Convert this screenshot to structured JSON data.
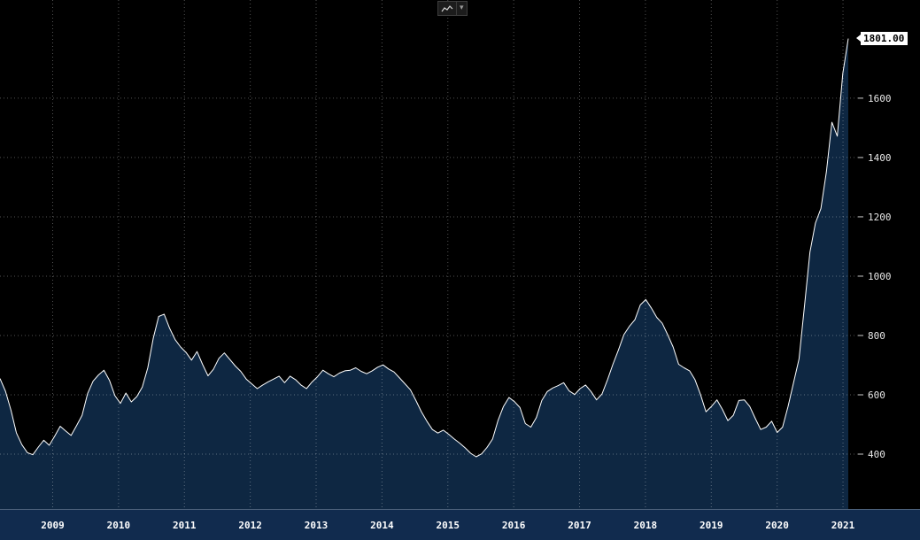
{
  "window": {
    "background": "#000000"
  },
  "toolbar": {
    "caret": "▾"
  },
  "chart_data": {
    "type": "area",
    "title": "",
    "xlabel": "",
    "ylabel": "",
    "grid": "dotted",
    "legend_position": "none",
    "last_price": "1801.00",
    "xlim": [
      2008.7,
      2021.58
    ],
    "ylim_visible": [
      215,
      1931
    ],
    "y_ticks": [
      400,
      600,
      800,
      1000,
      1200,
      1400,
      1600
    ],
    "x_ticks": [
      {
        "label": "2009",
        "t": 2009.5
      },
      {
        "label": "2010",
        "t": 2010.5
      },
      {
        "label": "2011",
        "t": 2011.5
      },
      {
        "label": "2012",
        "t": 2012.5
      },
      {
        "label": "2013",
        "t": 2013.5
      },
      {
        "label": "2014",
        "t": 2014.5
      },
      {
        "label": "2015",
        "t": 2015.5
      },
      {
        "label": "2016",
        "t": 2016.5
      },
      {
        "label": "2017",
        "t": 2017.5
      },
      {
        "label": "2018",
        "t": 2018.5
      },
      {
        "label": "2019",
        "t": 2019.5
      },
      {
        "label": "2020",
        "t": 2020.5
      },
      {
        "label": "2021",
        "t": 2021.5
      }
    ],
    "values": [
      655,
      612,
      548,
      472,
      432,
      405,
      398,
      424,
      447,
      430,
      461,
      494,
      478,
      463,
      496,
      531,
      604,
      646,
      667,
      683,
      649,
      597,
      571,
      606,
      576,
      594,
      626,
      691,
      791,
      864,
      872,
      824,
      786,
      761,
      743,
      717,
      746,
      703,
      664,
      686,
      723,
      741,
      719,
      697,
      679,
      653,
      637,
      621,
      633,
      644,
      653,
      663,
      641,
      663,
      651,
      633,
      621,
      643,
      661,
      683,
      671,
      661,
      673,
      681,
      683,
      691,
      679,
      671,
      681,
      693,
      701,
      687,
      677,
      657,
      637,
      617,
      581,
      543,
      511,
      483,
      471,
      481,
      467,
      451,
      437,
      421,
      403,
      391,
      401,
      423,
      451,
      513,
      561,
      591,
      577,
      557,
      503,
      491,
      523,
      581,
      611,
      623,
      631,
      641,
      613,
      601,
      621,
      633,
      611,
      583,
      603,
      651,
      703,
      751,
      803,
      831,
      853,
      903,
      921,
      893,
      861,
      841,
      803,
      761,
      703,
      691,
      681,
      651,
      601,
      543,
      561,
      583,
      551,
      513,
      531,
      581,
      583,
      561,
      521,
      483,
      491,
      511,
      473,
      491,
      561,
      641,
      721,
      901,
      1081,
      1179,
      1228,
      1352,
      1519,
      1472,
      1683,
      1801
    ],
    "colors": {
      "background": "#000000",
      "area_fill": "#0e2742",
      "line": "#ffffff",
      "grid": "rgba(255,255,255,0.32)",
      "axis_text": "#e8e8e8",
      "x_label_text": "#ffffff",
      "axis_band": "#112b4e",
      "tag_bg": "#ffffff",
      "tag_text": "#000000"
    }
  }
}
